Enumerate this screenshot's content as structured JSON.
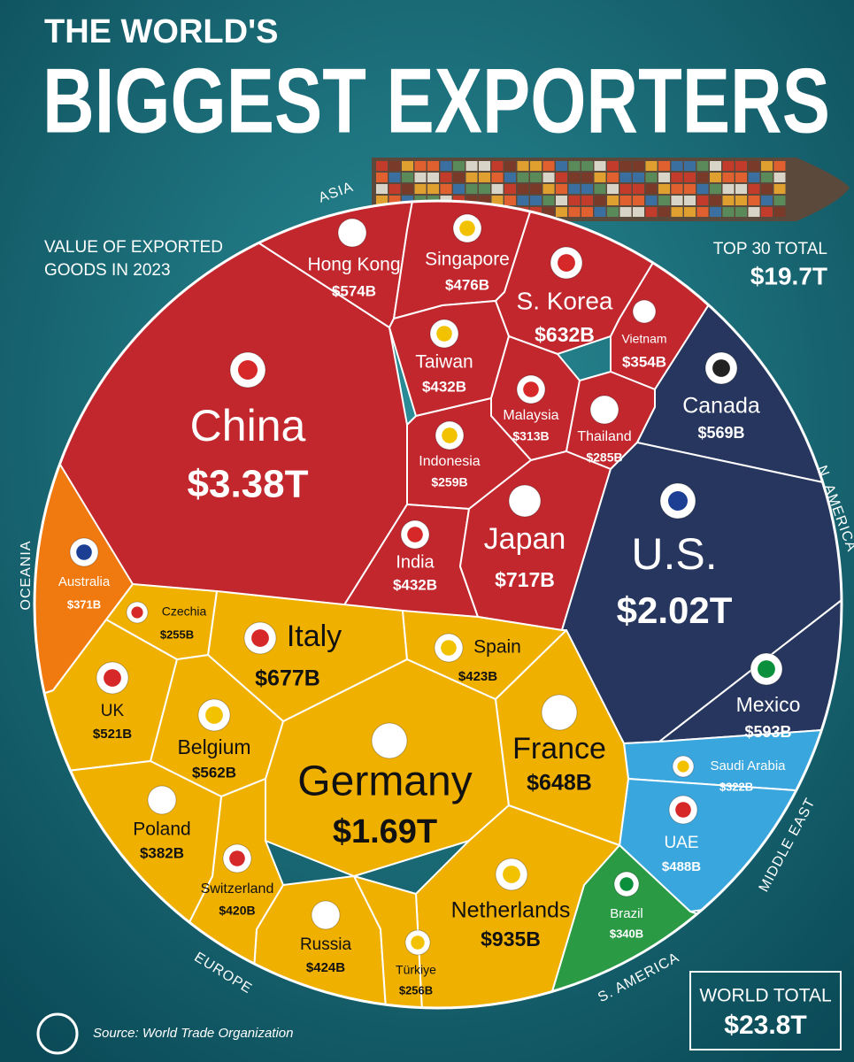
{
  "chart_data": {
    "type": "voronoi",
    "title_line1": "THE WORLD'S",
    "title": "BIGGEST EXPORTERS",
    "subtitle": [
      "VALUE OF EXPORTED",
      "GOODS IN 2023"
    ],
    "top_total_label": "TOP 30 TOTAL",
    "top_total": "$19.7T",
    "world_total_label": "WORLD TOTAL",
    "world_total": "$23.8T",
    "source": "Source: World Trade Organization",
    "series": [
      {
        "name": "ASIA",
        "color": "#c1272d",
        "categories": [
          "China",
          "Hong Kong",
          "Singapore",
          "S. Korea",
          "Vietnam",
          "Taiwan",
          "Malaysia",
          "Thailand",
          "Indonesia",
          "India",
          "Japan"
        ],
        "values": [
          3380,
          574,
          476,
          632,
          354,
          432,
          313,
          285,
          259,
          432,
          717
        ],
        "value_labels": [
          "$3.38T",
          "$574B",
          "$476B",
          "$632B",
          "$354B",
          "$432B",
          "$313B",
          "$285B",
          "$259B",
          "$432B",
          "$717B"
        ]
      },
      {
        "name": "N. AMERICA",
        "color": "#26365e",
        "categories": [
          "Canada",
          "U.S.",
          "Mexico"
        ],
        "values": [
          569,
          2020,
          593
        ],
        "value_labels": [
          "$569B",
          "$2.02T",
          "$593B"
        ]
      },
      {
        "name": "MIDDLE EAST",
        "color": "#3aa6de",
        "categories": [
          "Saudi Arabia",
          "UAE"
        ],
        "values": [
          322,
          488
        ],
        "value_labels": [
          "$322B",
          "$488B"
        ]
      },
      {
        "name": "S. AMERICA",
        "color": "#2a9a45",
        "categories": [
          "Brazil"
        ],
        "values": [
          340
        ],
        "value_labels": [
          "$340B"
        ]
      },
      {
        "name": "EUROPE",
        "color": "#f0b000",
        "categories": [
          "Germany",
          "Netherlands",
          "Italy",
          "France",
          "Belgium",
          "UK",
          "Russia",
          "Spain",
          "Switzerland",
          "Poland",
          "Türkiye",
          "Czechia"
        ],
        "values": [
          1690,
          935,
          677,
          648,
          562,
          521,
          424,
          423,
          420,
          382,
          256,
          255
        ],
        "value_labels": [
          "$1.69T",
          "$935B",
          "$677B",
          "$648B",
          "$562B",
          "$521B",
          "$424B",
          "$423B",
          "$420B",
          "$382B",
          "$256B",
          "$255B"
        ]
      },
      {
        "name": "OCEANIA",
        "color": "#f07a10",
        "categories": [
          "Australia"
        ],
        "values": [
          371
        ],
        "value_labels": [
          "$371B"
        ]
      }
    ]
  }
}
